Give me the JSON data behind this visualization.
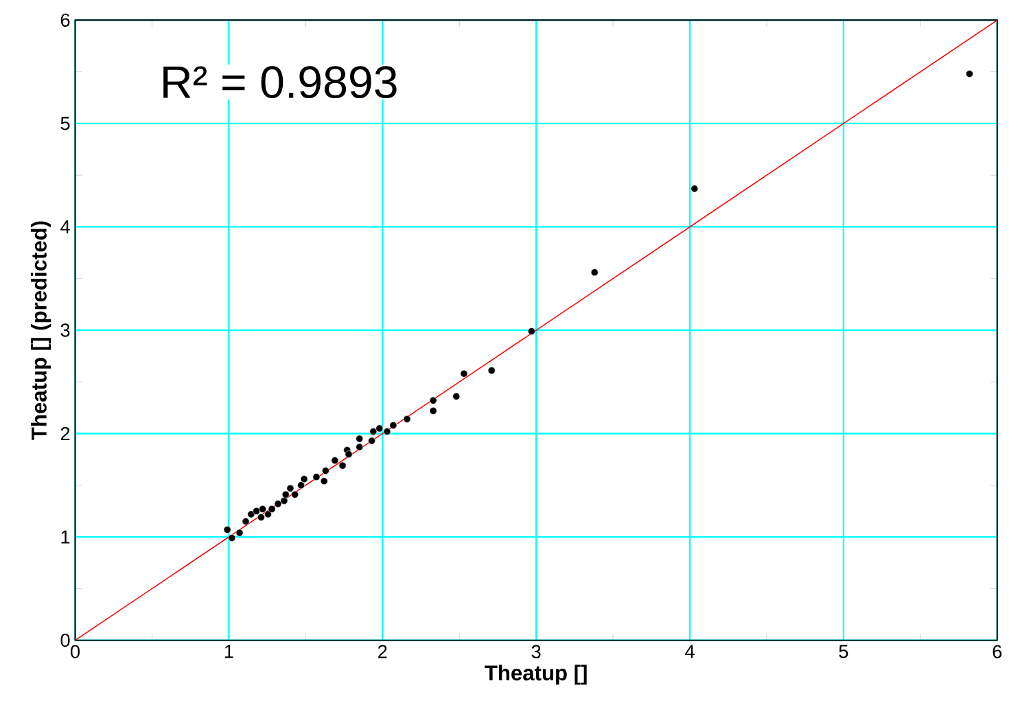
{
  "chart_data": {
    "type": "scatter",
    "xlabel": "Theatup []",
    "ylabel": "Theatup [] (predicted)",
    "annotations": [
      "R² = 0.9893"
    ],
    "xlim": [
      0,
      6
    ],
    "ylim": [
      0,
      6
    ],
    "xticks": [
      0,
      1,
      2,
      3,
      4,
      5,
      6
    ],
    "yticks": [
      0,
      1,
      2,
      3,
      4,
      5,
      6
    ],
    "grid": true,
    "series": [
      {
        "color": "#000000",
        "marker": "circle",
        "x": [
          0.99,
          1.02,
          1.07,
          1.11,
          1.145,
          1.18,
          1.21,
          1.22,
          1.255,
          1.28,
          1.32,
          1.36,
          1.37,
          1.4,
          1.43,
          1.47,
          1.49,
          1.57,
          1.62,
          1.63,
          1.69,
          1.74,
          1.77,
          1.78,
          1.85,
          1.85,
          1.94,
          1.93,
          1.98,
          2.03,
          2.07,
          2.16,
          2.33,
          2.33,
          2.48,
          2.53,
          2.71,
          2.97,
          3.38,
          4.03,
          5.82
        ],
        "values": [
          1.07,
          0.99,
          1.04,
          1.15,
          1.22,
          1.25,
          1.19,
          1.27,
          1.22,
          1.27,
          1.32,
          1.35,
          1.41,
          1.47,
          1.41,
          1.5,
          1.56,
          1.58,
          1.54,
          1.64,
          1.74,
          1.69,
          1.84,
          1.8,
          1.95,
          1.87,
          2.02,
          1.93,
          2.05,
          2.02,
          2.08,
          2.14,
          2.32,
          2.22,
          2.36,
          2.58,
          2.61,
          2.99,
          3.56,
          4.37,
          5.48
        ]
      },
      {
        "type": "line",
        "color": "#ff0000",
        "marker": "none",
        "line_style": "solid",
        "x": [
          0,
          6
        ],
        "values": [
          0,
          6
        ]
      }
    ]
  }
}
